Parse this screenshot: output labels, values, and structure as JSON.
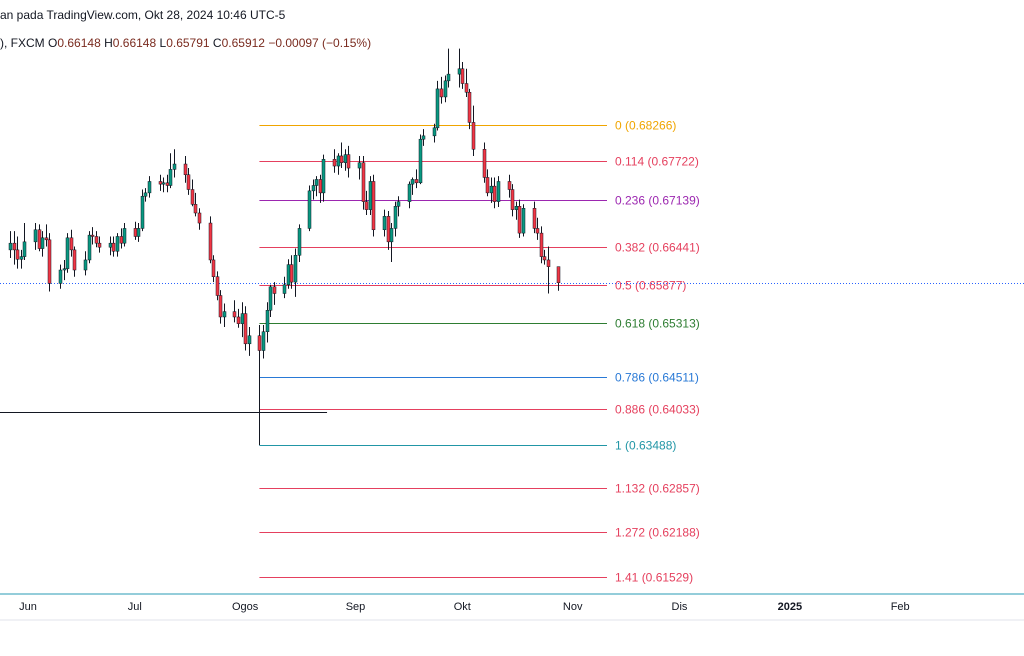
{
  "header": {
    "title": "an pada TradingView.com, Okt 28, 2024 10:46 UTC-5",
    "symbol_prefix": "), FXCM",
    "open_label": "O",
    "open": "0.66148",
    "high_label": "H",
    "high": "0.66148",
    "low_label": "L",
    "low": "0.65791",
    "close_label": "C",
    "close": "0.65912",
    "change": "−0.00097 (−0.15%)"
  },
  "colors": {
    "up": "#089981",
    "down": "#f23645",
    "wick": "#131722",
    "axis": "#2a9bb5",
    "price_line": "#2962ff"
  },
  "chart_data": {
    "type": "candlestick",
    "title": "",
    "x_ticks": [
      {
        "label": "Jun",
        "date": "2024-06-01"
      },
      {
        "label": "Jul",
        "date": "2024-07-01"
      },
      {
        "label": "Ogos",
        "date": "2024-08-01"
      },
      {
        "label": "Sep",
        "date": "2024-09-01"
      },
      {
        "label": "Okt",
        "date": "2024-10-01"
      },
      {
        "label": "Nov",
        "date": "2024-11-01"
      },
      {
        "label": "Dis",
        "date": "2024-12-01"
      },
      {
        "label": "2025",
        "date": "2025-01-01",
        "bold": true
      },
      {
        "label": "Feb",
        "date": "2025-02-01"
      }
    ],
    "y_range": [
      0.613,
      0.6935
    ],
    "current_price": 0.65912,
    "support_line": {
      "price": 0.6398,
      "from": "2024-05-15",
      "to": "2024-08-24"
    },
    "fib_retracement": {
      "from_date": "2024-08-05",
      "to_date": "2024-10-25",
      "levels": [
        {
          "ratio": "0",
          "price": "0.68266",
          "color": "#f0a500"
        },
        {
          "ratio": "0.114",
          "price": "0.67722",
          "color": "#e5405e"
        },
        {
          "ratio": "0.236",
          "price": "0.67139",
          "color": "#9c27b0"
        },
        {
          "ratio": "0.382",
          "price": "0.66441",
          "color": "#e5405e"
        },
        {
          "ratio": "0.5",
          "price": "0.65877",
          "color": "#e5405e"
        },
        {
          "ratio": "0.618",
          "price": "0.65313",
          "color": "#2e7d32"
        },
        {
          "ratio": "0.786",
          "price": "0.64511",
          "color": "#2979d6"
        },
        {
          "ratio": "0.886",
          "price": "0.64033",
          "color": "#e5405e"
        },
        {
          "ratio": "1",
          "price": "0.63488",
          "color": "#2196a6"
        },
        {
          "ratio": "1.132",
          "price": "0.62857",
          "color": "#e5405e"
        },
        {
          "ratio": "1.272",
          "price": "0.62188",
          "color": "#e5405e"
        },
        {
          "ratio": "1.41",
          "price": "0.61529",
          "color": "#e5405e"
        }
      ]
    },
    "candles": [
      {
        "d": "2024-05-27",
        "o": 0.664,
        "h": 0.6668,
        "l": 0.6628,
        "c": 0.665
      },
      {
        "d": "2024-05-28",
        "o": 0.665,
        "h": 0.6668,
        "l": 0.6618,
        "c": 0.664
      },
      {
        "d": "2024-05-29",
        "o": 0.664,
        "h": 0.666,
        "l": 0.6612,
        "c": 0.6626
      },
      {
        "d": "2024-05-30",
        "o": 0.6626,
        "h": 0.664,
        "l": 0.6612,
        "c": 0.663
      },
      {
        "d": "2024-05-31",
        "o": 0.663,
        "h": 0.668,
        "l": 0.6625,
        "c": 0.6652
      },
      {
        "d": "2024-06-03",
        "o": 0.6652,
        "h": 0.668,
        "l": 0.664,
        "c": 0.667
      },
      {
        "d": "2024-06-04",
        "o": 0.667,
        "h": 0.6678,
        "l": 0.6638,
        "c": 0.6642
      },
      {
        "d": "2024-06-05",
        "o": 0.6642,
        "h": 0.6668,
        "l": 0.663,
        "c": 0.6658
      },
      {
        "d": "2024-06-06",
        "o": 0.6658,
        "h": 0.6678,
        "l": 0.6645,
        "c": 0.6655
      },
      {
        "d": "2024-06-07",
        "o": 0.6655,
        "h": 0.6665,
        "l": 0.6578,
        "c": 0.659
      },
      {
        "d": "2024-06-10",
        "o": 0.659,
        "h": 0.6618,
        "l": 0.6582,
        "c": 0.661
      },
      {
        "d": "2024-06-11",
        "o": 0.661,
        "h": 0.6625,
        "l": 0.6595,
        "c": 0.6612
      },
      {
        "d": "2024-06-12",
        "o": 0.6612,
        "h": 0.6665,
        "l": 0.6606,
        "c": 0.6658
      },
      {
        "d": "2024-06-13",
        "o": 0.6658,
        "h": 0.667,
        "l": 0.663,
        "c": 0.664
      },
      {
        "d": "2024-06-14",
        "o": 0.664,
        "h": 0.6645,
        "l": 0.66,
        "c": 0.661
      },
      {
        "d": "2024-06-17",
        "o": 0.661,
        "h": 0.6638,
        "l": 0.6602,
        "c": 0.6625
      },
      {
        "d": "2024-06-18",
        "o": 0.6625,
        "h": 0.6668,
        "l": 0.662,
        "c": 0.6662
      },
      {
        "d": "2024-06-19",
        "o": 0.6662,
        "h": 0.6674,
        "l": 0.6648,
        "c": 0.666
      },
      {
        "d": "2024-06-20",
        "o": 0.666,
        "h": 0.6668,
        "l": 0.6644,
        "c": 0.665
      },
      {
        "d": "2024-06-21",
        "o": 0.665,
        "h": 0.666,
        "l": 0.6636,
        "c": 0.6644
      },
      {
        "d": "2024-06-24",
        "o": 0.6644,
        "h": 0.666,
        "l": 0.6632,
        "c": 0.665
      },
      {
        "d": "2024-06-25",
        "o": 0.665,
        "h": 0.666,
        "l": 0.663,
        "c": 0.6638
      },
      {
        "d": "2024-06-26",
        "o": 0.6638,
        "h": 0.6665,
        "l": 0.663,
        "c": 0.666
      },
      {
        "d": "2024-06-27",
        "o": 0.666,
        "h": 0.6672,
        "l": 0.6642,
        "c": 0.665
      },
      {
        "d": "2024-06-28",
        "o": 0.665,
        "h": 0.668,
        "l": 0.6645,
        "c": 0.6672
      },
      {
        "d": "2024-07-01",
        "o": 0.6672,
        "h": 0.6682,
        "l": 0.6655,
        "c": 0.666
      },
      {
        "d": "2024-07-02",
        "o": 0.666,
        "h": 0.668,
        "l": 0.6652,
        "c": 0.6672
      },
      {
        "d": "2024-07-03",
        "o": 0.6672,
        "h": 0.673,
        "l": 0.6668,
        "c": 0.672
      },
      {
        "d": "2024-07-04",
        "o": 0.672,
        "h": 0.6732,
        "l": 0.6712,
        "c": 0.6725
      },
      {
        "d": "2024-07-05",
        "o": 0.6725,
        "h": 0.675,
        "l": 0.6718,
        "c": 0.6742
      },
      {
        "d": "2024-07-08",
        "o": 0.6742,
        "h": 0.6752,
        "l": 0.6728,
        "c": 0.6738
      },
      {
        "d": "2024-07-09",
        "o": 0.6738,
        "h": 0.6748,
        "l": 0.6726,
        "c": 0.674
      },
      {
        "d": "2024-07-10",
        "o": 0.674,
        "h": 0.6752,
        "l": 0.6726,
        "c": 0.6736
      },
      {
        "d": "2024-07-11",
        "o": 0.6736,
        "h": 0.6784,
        "l": 0.6732,
        "c": 0.676
      },
      {
        "d": "2024-07-12",
        "o": 0.676,
        "h": 0.679,
        "l": 0.6748,
        "c": 0.6768
      },
      {
        "d": "2024-07-15",
        "o": 0.6768,
        "h": 0.678,
        "l": 0.674,
        "c": 0.6752
      },
      {
        "d": "2024-07-16",
        "o": 0.6752,
        "h": 0.6762,
        "l": 0.6722,
        "c": 0.673
      },
      {
        "d": "2024-07-17",
        "o": 0.673,
        "h": 0.6745,
        "l": 0.6705,
        "c": 0.6708
      },
      {
        "d": "2024-07-18",
        "o": 0.6708,
        "h": 0.6725,
        "l": 0.669,
        "c": 0.6695
      },
      {
        "d": "2024-07-19",
        "o": 0.6695,
        "h": 0.6702,
        "l": 0.667,
        "c": 0.668
      },
      {
        "d": "2024-07-22",
        "o": 0.668,
        "h": 0.669,
        "l": 0.662,
        "c": 0.6625
      },
      {
        "d": "2024-07-23",
        "o": 0.6625,
        "h": 0.6632,
        "l": 0.6592,
        "c": 0.66
      },
      {
        "d": "2024-07-24",
        "o": 0.66,
        "h": 0.6608,
        "l": 0.6565,
        "c": 0.6572
      },
      {
        "d": "2024-07-25",
        "o": 0.6572,
        "h": 0.658,
        "l": 0.653,
        "c": 0.654
      },
      {
        "d": "2024-07-26",
        "o": 0.654,
        "h": 0.656,
        "l": 0.6525,
        "c": 0.6548
      },
      {
        "d": "2024-07-29",
        "o": 0.6548,
        "h": 0.6565,
        "l": 0.6532,
        "c": 0.654
      },
      {
        "d": "2024-07-30",
        "o": 0.654,
        "h": 0.6552,
        "l": 0.6524,
        "c": 0.653
      },
      {
        "d": "2024-07-31",
        "o": 0.653,
        "h": 0.6562,
        "l": 0.651,
        "c": 0.6545
      },
      {
        "d": "2024-08-01",
        "o": 0.6545,
        "h": 0.6556,
        "l": 0.649,
        "c": 0.65
      },
      {
        "d": "2024-08-02",
        "o": 0.65,
        "h": 0.6525,
        "l": 0.6482,
        "c": 0.6512
      },
      {
        "d": "2024-08-05",
        "o": 0.6512,
        "h": 0.6528,
        "l": 0.6349,
        "c": 0.649
      },
      {
        "d": "2024-08-06",
        "o": 0.649,
        "h": 0.6528,
        "l": 0.6478,
        "c": 0.6518
      },
      {
        "d": "2024-08-07",
        "o": 0.6518,
        "h": 0.6562,
        "l": 0.6502,
        "c": 0.655
      },
      {
        "d": "2024-08-08",
        "o": 0.655,
        "h": 0.6588,
        "l": 0.654,
        "c": 0.6585
      },
      {
        "d": "2024-08-09",
        "o": 0.6585,
        "h": 0.6592,
        "l": 0.6558,
        "c": 0.6575
      },
      {
        "d": "2024-08-12",
        "o": 0.6575,
        "h": 0.66,
        "l": 0.6568,
        "c": 0.6588
      },
      {
        "d": "2024-08-13",
        "o": 0.6588,
        "h": 0.6626,
        "l": 0.6582,
        "c": 0.6618
      },
      {
        "d": "2024-08-14",
        "o": 0.6618,
        "h": 0.6632,
        "l": 0.6582,
        "c": 0.6592
      },
      {
        "d": "2024-08-15",
        "o": 0.6592,
        "h": 0.6642,
        "l": 0.657,
        "c": 0.6632
      },
      {
        "d": "2024-08-16",
        "o": 0.6632,
        "h": 0.6678,
        "l": 0.6622,
        "c": 0.6672
      },
      {
        "d": "2024-08-19",
        "o": 0.6672,
        "h": 0.6736,
        "l": 0.6668,
        "c": 0.6728
      },
      {
        "d": "2024-08-20",
        "o": 0.6728,
        "h": 0.6745,
        "l": 0.6715,
        "c": 0.6736
      },
      {
        "d": "2024-08-21",
        "o": 0.6736,
        "h": 0.675,
        "l": 0.672,
        "c": 0.6745
      },
      {
        "d": "2024-08-22",
        "o": 0.6745,
        "h": 0.6752,
        "l": 0.671,
        "c": 0.6725
      },
      {
        "d": "2024-08-23",
        "o": 0.6725,
        "h": 0.6782,
        "l": 0.6712,
        "c": 0.6775
      },
      {
        "d": "2024-08-26",
        "o": 0.6775,
        "h": 0.679,
        "l": 0.6755,
        "c": 0.6765
      },
      {
        "d": "2024-08-27",
        "o": 0.6765,
        "h": 0.6784,
        "l": 0.6752,
        "c": 0.678
      },
      {
        "d": "2024-08-28",
        "o": 0.678,
        "h": 0.68,
        "l": 0.6762,
        "c": 0.677
      },
      {
        "d": "2024-08-29",
        "o": 0.677,
        "h": 0.679,
        "l": 0.6758,
        "c": 0.6782
      },
      {
        "d": "2024-08-30",
        "o": 0.6782,
        "h": 0.6795,
        "l": 0.6748,
        "c": 0.6762
      },
      {
        "d": "2024-09-02",
        "o": 0.6762,
        "h": 0.678,
        "l": 0.6745,
        "c": 0.677
      },
      {
        "d": "2024-09-03",
        "o": 0.677,
        "h": 0.678,
        "l": 0.67,
        "c": 0.6712
      },
      {
        "d": "2024-09-04",
        "o": 0.6712,
        "h": 0.6728,
        "l": 0.6692,
        "c": 0.67
      },
      {
        "d": "2024-09-05",
        "o": 0.67,
        "h": 0.675,
        "l": 0.6692,
        "c": 0.6742
      },
      {
        "d": "2024-09-06",
        "o": 0.6742,
        "h": 0.6752,
        "l": 0.666,
        "c": 0.667
      },
      {
        "d": "2024-09-09",
        "o": 0.667,
        "h": 0.67,
        "l": 0.666,
        "c": 0.669
      },
      {
        "d": "2024-09-10",
        "o": 0.669,
        "h": 0.6698,
        "l": 0.664,
        "c": 0.6652
      },
      {
        "d": "2024-09-11",
        "o": 0.6652,
        "h": 0.668,
        "l": 0.6622,
        "c": 0.6672
      },
      {
        "d": "2024-09-12",
        "o": 0.6672,
        "h": 0.6712,
        "l": 0.666,
        "c": 0.6705
      },
      {
        "d": "2024-09-13",
        "o": 0.6705,
        "h": 0.672,
        "l": 0.669,
        "c": 0.6712
      },
      {
        "d": "2024-09-16",
        "o": 0.6712,
        "h": 0.6742,
        "l": 0.6702,
        "c": 0.6738
      },
      {
        "d": "2024-09-17",
        "o": 0.6738,
        "h": 0.6748,
        "l": 0.6722,
        "c": 0.6745
      },
      {
        "d": "2024-09-18",
        "o": 0.6745,
        "h": 0.676,
        "l": 0.6732,
        "c": 0.674
      },
      {
        "d": "2024-09-19",
        "o": 0.674,
        "h": 0.6812,
        "l": 0.6738,
        "c": 0.6805
      },
      {
        "d": "2024-09-20",
        "o": 0.6805,
        "h": 0.682,
        "l": 0.6795,
        "c": 0.681
      },
      {
        "d": "2024-09-23",
        "o": 0.681,
        "h": 0.6828,
        "l": 0.68,
        "c": 0.6822
      },
      {
        "d": "2024-09-24",
        "o": 0.6822,
        "h": 0.6892,
        "l": 0.6818,
        "c": 0.688
      },
      {
        "d": "2024-09-25",
        "o": 0.688,
        "h": 0.6898,
        "l": 0.6858,
        "c": 0.6868
      },
      {
        "d": "2024-09-26",
        "o": 0.6868,
        "h": 0.69,
        "l": 0.686,
        "c": 0.6892
      },
      {
        "d": "2024-09-27",
        "o": 0.6892,
        "h": 0.694,
        "l": 0.6882,
        "c": 0.6902
      },
      {
        "d": "2024-09-30",
        "o": 0.6902,
        "h": 0.694,
        "l": 0.6882,
        "c": 0.691
      },
      {
        "d": "2024-10-01",
        "o": 0.691,
        "h": 0.692,
        "l": 0.688,
        "c": 0.6888
      },
      {
        "d": "2024-10-02",
        "o": 0.6888,
        "h": 0.691,
        "l": 0.6868,
        "c": 0.6875
      },
      {
        "d": "2024-10-03",
        "o": 0.6875,
        "h": 0.688,
        "l": 0.682,
        "c": 0.683
      },
      {
        "d": "2024-10-04",
        "o": 0.683,
        "h": 0.6855,
        "l": 0.678,
        "c": 0.679
      },
      {
        "d": "2024-10-07",
        "o": 0.679,
        "h": 0.68,
        "l": 0.674,
        "c": 0.6748
      },
      {
        "d": "2024-10-08",
        "o": 0.6748,
        "h": 0.676,
        "l": 0.672,
        "c": 0.6725
      },
      {
        "d": "2024-10-09",
        "o": 0.6725,
        "h": 0.6748,
        "l": 0.671,
        "c": 0.6735
      },
      {
        "d": "2024-10-10",
        "o": 0.6735,
        "h": 0.6748,
        "l": 0.6702,
        "c": 0.6712
      },
      {
        "d": "2024-10-11",
        "o": 0.6712,
        "h": 0.675,
        "l": 0.6704,
        "c": 0.6742
      },
      {
        "d": "2024-10-14",
        "o": 0.6742,
        "h": 0.6752,
        "l": 0.6718,
        "c": 0.673
      },
      {
        "d": "2024-10-15",
        "o": 0.673,
        "h": 0.6738,
        "l": 0.669,
        "c": 0.67
      },
      {
        "d": "2024-10-16",
        "o": 0.67,
        "h": 0.6712,
        "l": 0.6685,
        "c": 0.6705
      },
      {
        "d": "2024-10-17",
        "o": 0.6705,
        "h": 0.6715,
        "l": 0.6658,
        "c": 0.6665
      },
      {
        "d": "2024-10-18",
        "o": 0.6665,
        "h": 0.6708,
        "l": 0.666,
        "c": 0.6702
      },
      {
        "d": "2024-10-21",
        "o": 0.6702,
        "h": 0.6712,
        "l": 0.6665,
        "c": 0.6672
      },
      {
        "d": "2024-10-22",
        "o": 0.6672,
        "h": 0.6688,
        "l": 0.6655,
        "c": 0.6665
      },
      {
        "d": "2024-10-23",
        "o": 0.6665,
        "h": 0.6675,
        "l": 0.662,
        "c": 0.663
      },
      {
        "d": "2024-10-24",
        "o": 0.663,
        "h": 0.664,
        "l": 0.6618,
        "c": 0.6625
      },
      {
        "d": "2024-10-25",
        "o": 0.6625,
        "h": 0.6645,
        "l": 0.6575,
        "c": 0.6615
      },
      {
        "d": "2024-10-28",
        "o": 0.6615,
        "h": 0.6615,
        "l": 0.6579,
        "c": 0.6591
      }
    ]
  }
}
